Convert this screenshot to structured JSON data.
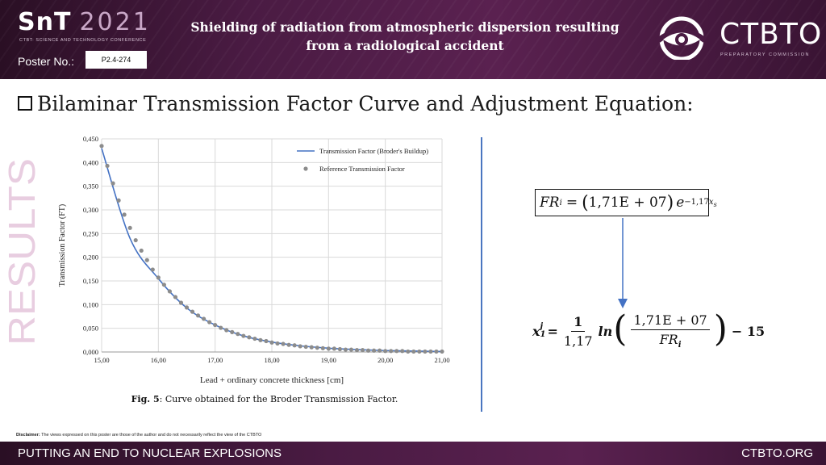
{
  "header": {
    "brand_main": "SnT",
    "brand_year": "2021",
    "brand_subtitle": "CTBT: SCIENCE AND TECHNOLOGY CONFERENCE",
    "poster_label": "Poster No.:",
    "poster_number": "P2.4-274",
    "title_line1": "Shielding of radiation from atmospheric dispersion resulting",
    "title_line2": "from a radiological accident",
    "org_name": "CTBTO",
    "org_subtitle": "PREPARATORY COMMISSION"
  },
  "section": {
    "title": "Bilaminar Transmission Factor Curve and Adjustment Equation:",
    "side_label": "RESULTS"
  },
  "chart_data": {
    "type": "line",
    "xlabel": "Lead + ordinary concrete thickness [cm]",
    "ylabel": "Transmission Factor (FT)",
    "xlim": [
      15,
      21
    ],
    "ylim": [
      0,
      0.45
    ],
    "x_ticks": [
      "15,00",
      "16,00",
      "17,00",
      "18,00",
      "19,00",
      "20,00",
      "21,00"
    ],
    "y_ticks": [
      "0,000",
      "0,050",
      "0,100",
      "0,150",
      "0,200",
      "0,250",
      "0,300",
      "0,350",
      "0,400",
      "0,450"
    ],
    "legend_position": "top-right",
    "series": [
      {
        "name": "Transmission Factor (Broder's Buildup)",
        "style": "line",
        "color": "#4472c4",
        "x": [
          15.0,
          15.5,
          16.0,
          16.5,
          17.0,
          17.5,
          18.0,
          18.5,
          19.0,
          19.5,
          20.0,
          20.5,
          21.0
        ],
        "y": [
          0.43,
          0.24,
          0.155,
          0.093,
          0.057,
          0.034,
          0.021,
          0.013,
          0.008,
          0.005,
          0.003,
          0.002,
          0.001
        ]
      },
      {
        "name": "Reference Transmission Factor",
        "style": "markers",
        "color": "#8c8c8c",
        "x": [
          15.0,
          15.1,
          15.2,
          15.3,
          15.4,
          15.5,
          15.6,
          15.7,
          15.8,
          15.9,
          16.0,
          16.1,
          16.2,
          16.3,
          16.4,
          16.5,
          16.6,
          16.7,
          16.8,
          16.9,
          17.0,
          17.1,
          17.2,
          17.3,
          17.4,
          17.5,
          17.6,
          17.7,
          17.8,
          17.9,
          18.0,
          18.1,
          18.2,
          18.3,
          18.4,
          18.5,
          18.6,
          18.7,
          18.8,
          18.9,
          19.0,
          19.1,
          19.2,
          19.3,
          19.4,
          19.5,
          19.6,
          19.7,
          19.8,
          19.9,
          20.0,
          20.1,
          20.2,
          20.3,
          20.4,
          20.5,
          20.6,
          20.7,
          20.8,
          20.9,
          21.0
        ],
        "y": [
          0.435,
          0.393,
          0.356,
          0.32,
          0.29,
          0.262,
          0.236,
          0.214,
          0.194,
          0.174,
          0.157,
          0.142,
          0.128,
          0.116,
          0.104,
          0.094,
          0.085,
          0.077,
          0.07,
          0.063,
          0.057,
          0.051,
          0.046,
          0.042,
          0.038,
          0.034,
          0.031,
          0.028,
          0.025,
          0.023,
          0.02,
          0.018,
          0.017,
          0.015,
          0.014,
          0.012,
          0.011,
          0.01,
          0.009,
          0.008,
          0.007,
          0.007,
          0.006,
          0.005,
          0.005,
          0.004,
          0.004,
          0.003,
          0.003,
          0.003,
          0.002,
          0.002,
          0.002,
          0.002,
          0.001,
          0.001,
          0.001,
          0.001,
          0.001,
          0.001,
          0.001
        ]
      }
    ]
  },
  "figure": {
    "caption_bold": "Fig. 5",
    "caption_text": ": Curve obtained for the Broder Transmission Factor."
  },
  "equations": {
    "eq1_lhs": "FR",
    "eq1_lhs_sub": "i",
    "eq1_coef": "1,71E + 07",
    "eq1_base": "e",
    "eq1_exp_coef": "−1,17",
    "eq1_exp_var": "x",
    "eq1_exp_sub": "s",
    "eq2_var": "x",
    "eq2_sup": "j",
    "eq2_sub": "1",
    "eq2_num": "1",
    "eq2_den": "1,17",
    "eq2_fn": "ln",
    "eq2_inner_num": "1,71E + 07",
    "eq2_inner_den": "FR",
    "eq2_inner_den_sub": "i",
    "eq2_tail": "− 15"
  },
  "disclaimer": {
    "label": "Disclaimer:",
    "text": "The views expressed on this poster are those of the author and do not necessarily reflect the view of the CTBTO"
  },
  "footer": {
    "left": "PUTTING AN END TO NUCLEAR EXPLOSIONS",
    "right": "CTBTO.ORG"
  },
  "colors": {
    "header_bg": "#4a1b43",
    "results_text": "#e8cde0",
    "divider": "#4a76c0",
    "line": "#4472c4",
    "markers": "#8c8c8c"
  }
}
